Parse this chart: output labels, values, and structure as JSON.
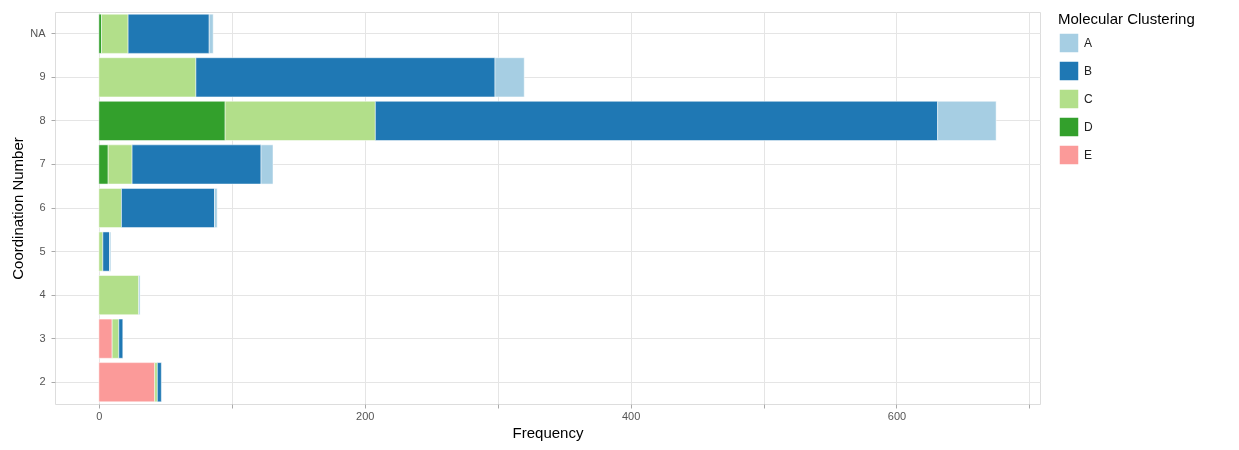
{
  "chart_data": {
    "type": "bar",
    "orientation": "horizontal",
    "stacked": true,
    "xlabel": "Frequency",
    "ylabel": "Coordination Number",
    "legend_title": "Molecular Clustering",
    "categories": [
      "NA",
      "9",
      "8",
      "7",
      "6",
      "5",
      "4",
      "3",
      "2"
    ],
    "series": [
      {
        "name": "E",
        "color": "#fb9a99",
        "values": [
          null,
          null,
          null,
          null,
          null,
          null,
          null,
          10,
          42
        ]
      },
      {
        "name": "D",
        "color": "#33a02c",
        "values": [
          2,
          null,
          95,
          7,
          null,
          null,
          null,
          null,
          null
        ]
      },
      {
        "name": "C",
        "color": "#b2df8a",
        "values": [
          20,
          73,
          113,
          18,
          17,
          3,
          30,
          5,
          2
        ]
      },
      {
        "name": "B",
        "color": "#1f78b4",
        "values": [
          61,
          225,
          423,
          97,
          70,
          5,
          null,
          3,
          3
        ]
      },
      {
        "name": "A",
        "color": "#a6cee3",
        "values": [
          3,
          22,
          44,
          9,
          2,
          1,
          1,
          null,
          null
        ]
      }
    ],
    "xlim": [
      -33,
      708
    ],
    "xticks": [
      0,
      {
        "value": 100,
        "label": null
      },
      200,
      {
        "value": 300,
        "label": null
      },
      400,
      {
        "value": 500,
        "label": null
      },
      600,
      {
        "value": 700,
        "label": null
      }
    ],
    "grid": true,
    "legend": "right"
  }
}
